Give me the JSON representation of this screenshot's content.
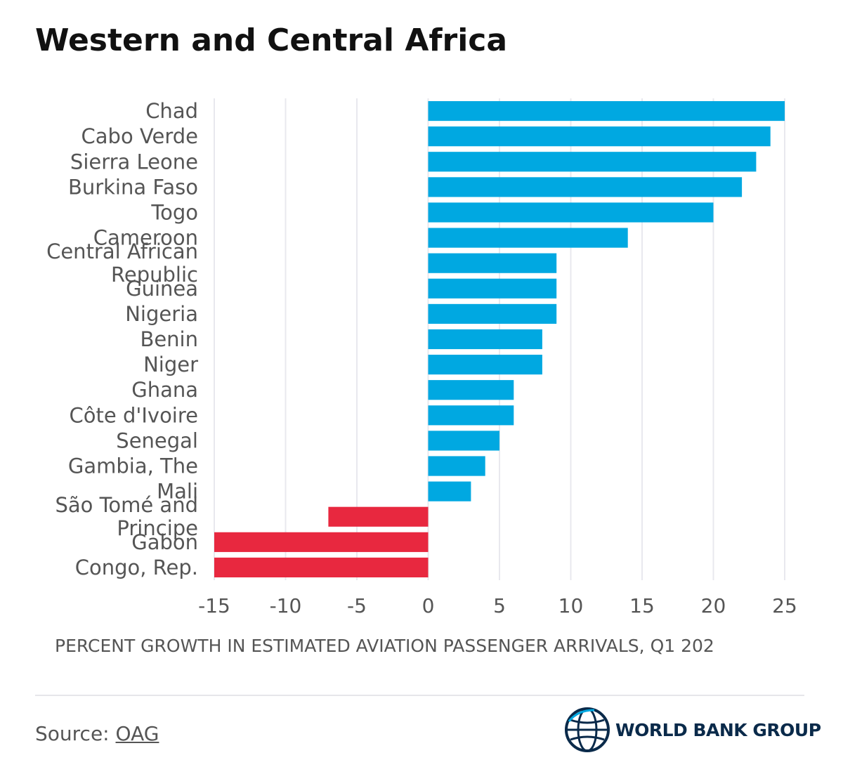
{
  "title": "Western and Central Africa",
  "chart_data": {
    "type": "bar",
    "orientation": "horizontal",
    "title": "Western and Central Africa",
    "xlabel": "PERCENT GROWTH IN ESTIMATED AVIATION PASSENGER ARRIVALS, Q1 202",
    "ylabel": "",
    "xlim": [
      -15,
      25
    ],
    "xticks": [
      -15,
      -10,
      -5,
      0,
      5,
      10,
      15,
      20,
      25
    ],
    "grid": true,
    "categories": [
      {
        "label": [
          "Chad"
        ],
        "value": 25
      },
      {
        "label": [
          "Cabo Verde"
        ],
        "value": 24
      },
      {
        "label": [
          "Sierra Leone"
        ],
        "value": 23
      },
      {
        "label": [
          "Burkina Faso"
        ],
        "value": 22
      },
      {
        "label": [
          "Togo"
        ],
        "value": 20
      },
      {
        "label": [
          "Cameroon"
        ],
        "value": 14
      },
      {
        "label": [
          "Central African",
          "Republic"
        ],
        "value": 9
      },
      {
        "label": [
          "Guinea"
        ],
        "value": 9
      },
      {
        "label": [
          "Nigeria"
        ],
        "value": 9
      },
      {
        "label": [
          "Benin"
        ],
        "value": 8
      },
      {
        "label": [
          "Niger"
        ],
        "value": 8
      },
      {
        "label": [
          "Ghana"
        ],
        "value": 6
      },
      {
        "label": [
          "Côte d'Ivoire"
        ],
        "value": 6
      },
      {
        "label": [
          "Senegal"
        ],
        "value": 5
      },
      {
        "label": [
          "Gambia, The"
        ],
        "value": 4
      },
      {
        "label": [
          "Mali"
        ],
        "value": 3
      },
      {
        "label": [
          "São Tomé and",
          "Principe"
        ],
        "value": -7
      },
      {
        "label": [
          "Gabon"
        ],
        "value": -15
      },
      {
        "label": [
          "Congo, Rep."
        ],
        "value": -15
      }
    ],
    "colors": {
      "positive": "#00a8e1",
      "negative": "#e8283f",
      "grid": "#e8e8ee"
    }
  },
  "footer": {
    "source_prefix": "Source: ",
    "source_link": "OAG",
    "logo_text": "WORLD BANK GROUP",
    "logo_icon": "globe-icon"
  }
}
